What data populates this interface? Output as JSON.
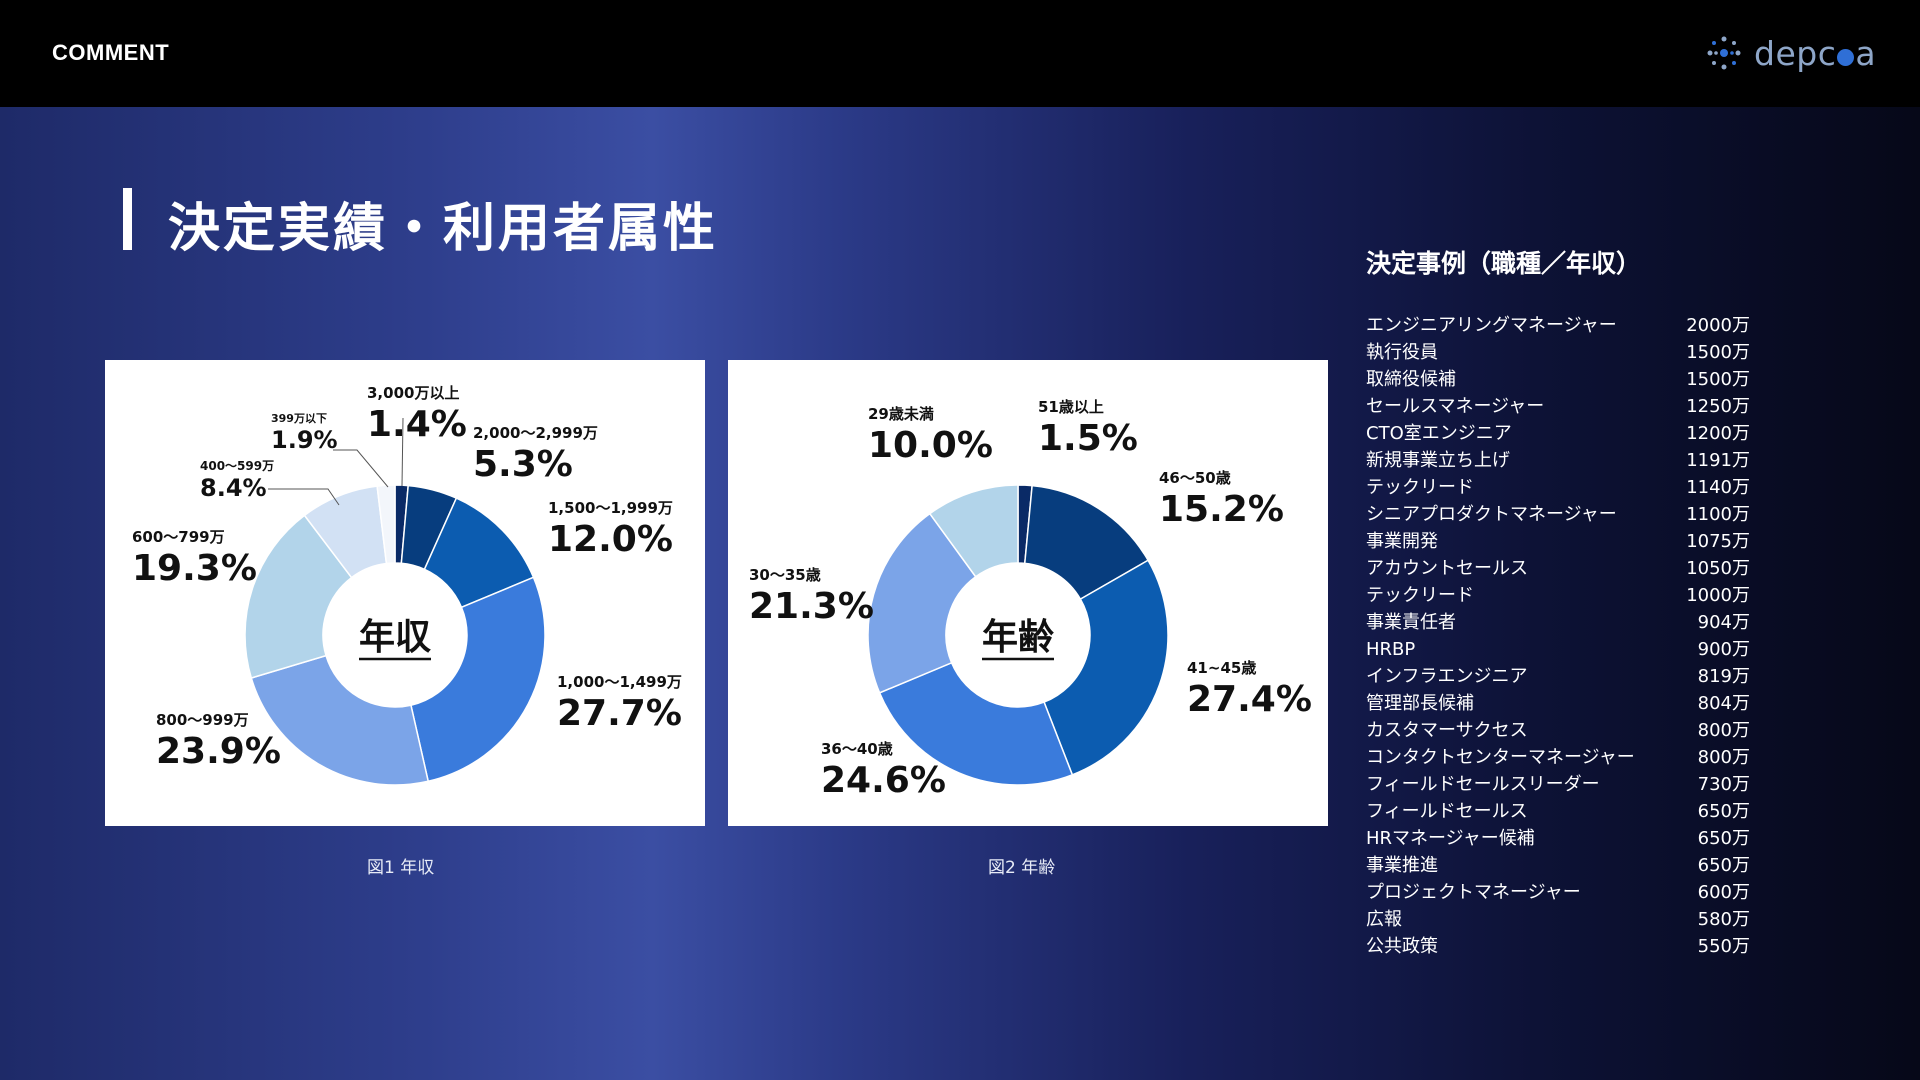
{
  "header": {
    "label": "COMMENT",
    "logo_text_pre": "depc",
    "logo_text_post": "a"
  },
  "page_title": "決定実績・利用者属性",
  "figures": [
    {
      "caption": "図1 年収"
    },
    {
      "caption": "図2 年齢"
    }
  ],
  "chart_data": [
    {
      "type": "pie",
      "donut": true,
      "title": "年収",
      "center_label": "年収",
      "slices": [
        {
          "label": "3,000万以上",
          "value": 1.4,
          "display": "1.4%",
          "color": "#0a2a66"
        },
        {
          "label": "2,000〜2,999万",
          "value": 5.3,
          "display": "5.3%",
          "color": "#073d7e"
        },
        {
          "label": "1,500〜1,999万",
          "value": 12.0,
          "display": "12.0%",
          "color": "#0c5cb0"
        },
        {
          "label": "1,000〜1,499万",
          "value": 27.7,
          "display": "27.7%",
          "color": "#3a7bdc"
        },
        {
          "label": "800〜999万",
          "value": 23.9,
          "display": "23.9%",
          "color": "#7ba4e8"
        },
        {
          "label": "600〜799万",
          "value": 19.3,
          "display": "19.3%",
          "color": "#b2d4ea"
        },
        {
          "label": "400〜599万",
          "value": 8.4,
          "display": "8.4%",
          "color": "#d2e1f4"
        },
        {
          "label": "399万以下",
          "value": 1.9,
          "display": "1.9%",
          "color": "#f3f6fb"
        }
      ]
    },
    {
      "type": "pie",
      "donut": true,
      "title": "年齢",
      "center_label": "年齢",
      "slices": [
        {
          "label": "51歳以上",
          "value": 1.5,
          "display": "1.5%",
          "color": "#0a2a66"
        },
        {
          "label": "46〜50歳",
          "value": 15.2,
          "display": "15.2%",
          "color": "#073d7e"
        },
        {
          "label": "41~45歳",
          "value": 27.4,
          "display": "27.4%",
          "color": "#0c5cb0"
        },
        {
          "label": "36〜40歳",
          "value": 24.6,
          "display": "24.6%",
          "color": "#3a7bdc"
        },
        {
          "label": "30〜35歳",
          "value": 21.3,
          "display": "21.3%",
          "color": "#7ba4e8"
        },
        {
          "label": "29歳未満",
          "value": 10.0,
          "display": "10.0%",
          "color": "#b2d4ea"
        }
      ]
    }
  ],
  "examples": {
    "title": "決定事例（職種／年収）",
    "rows": [
      {
        "role": "エンジニアリングマネージャー",
        "salary": "2000万"
      },
      {
        "role": "執行役員",
        "salary": "1500万"
      },
      {
        "role": "取締役候補",
        "salary": "1500万"
      },
      {
        "role": "セールスマネージャー",
        "salary": "1250万"
      },
      {
        "role": "CTO室エンジニア",
        "salary": "1200万"
      },
      {
        "role": "新規事業立ち上げ",
        "salary": "1191万"
      },
      {
        "role": "テックリード",
        "salary": "1140万"
      },
      {
        "role": "シニアプロダクトマネージャー",
        "salary": "1100万"
      },
      {
        "role": "事業開発",
        "salary": "1075万"
      },
      {
        "role": "アカウントセールス",
        "salary": "1050万"
      },
      {
        "role": "テックリード",
        "salary": "1000万"
      },
      {
        "role": "事業責任者",
        "salary": "904万"
      },
      {
        "role": "HRBP",
        "salary": "900万"
      },
      {
        "role": "インフラエンジニア",
        "salary": "819万"
      },
      {
        "role": "管理部長候補",
        "salary": "804万"
      },
      {
        "role": "カスタマーサクセス",
        "salary": "800万"
      },
      {
        "role": "コンタクトセンターマネージャー",
        "salary": "800万"
      },
      {
        "role": "フィールドセールスリーダー",
        "salary": "730万"
      },
      {
        "role": "フィールドセールス",
        "salary": "650万"
      },
      {
        "role": "HRマネージャー候補",
        "salary": "650万"
      },
      {
        "role": "事業推進",
        "salary": "650万"
      },
      {
        "role": "プロジェクトマネージャー",
        "salary": "600万"
      },
      {
        "role": "広報",
        "salary": "580万"
      },
      {
        "role": "公共政策",
        "salary": "550万"
      }
    ]
  }
}
